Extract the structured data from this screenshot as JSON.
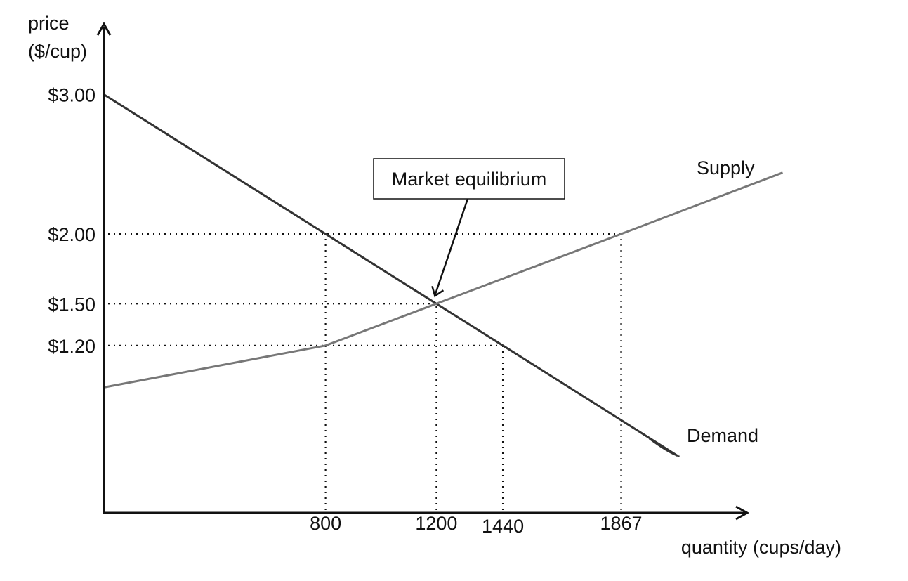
{
  "chart_data": {
    "type": "line",
    "title": "",
    "xlabel": "quantity (cups/day)",
    "ylabel": "price ($/cup)",
    "ylabel_lines": [
      "price",
      "($/cup)"
    ],
    "x_ticks": [
      800,
      1200,
      1440,
      1867
    ],
    "x_tick_labels": [
      "800",
      "1200",
      "1440",
      "1867"
    ],
    "y_ticks": [
      3.0,
      2.0,
      1.5,
      1.2
    ],
    "y_tick_labels": [
      "$3.00",
      "$2.00",
      "$1.50",
      "$1.20"
    ],
    "series": [
      {
        "name": "Demand",
        "label": "Demand",
        "color": "#333333",
        "points": [
          [
            0,
            3.0
          ],
          [
            800,
            2.0
          ],
          [
            1200,
            1.5
          ],
          [
            1440,
            1.2
          ],
          [
            2070,
            0.41
          ]
        ]
      },
      {
        "name": "Supply",
        "label": "Supply",
        "color": "#777777",
        "points": [
          [
            0,
            0.9
          ],
          [
            800,
            1.2
          ],
          [
            1200,
            1.5
          ],
          [
            1867,
            2.0
          ],
          [
            2450,
            2.44
          ]
        ]
      }
    ],
    "guides": [
      {
        "kind": "h",
        "y": 2.0,
        "x_to": 1867
      },
      {
        "kind": "h",
        "y": 1.5,
        "x_to": 1200
      },
      {
        "kind": "h",
        "y": 1.2,
        "x_to": 1440
      },
      {
        "kind": "v",
        "x": 800,
        "y_to": 2.0
      },
      {
        "kind": "v",
        "x": 1200,
        "y_to": 1.5
      },
      {
        "kind": "v",
        "x": 1440,
        "y_to": 1.2
      },
      {
        "kind": "v",
        "x": 1867,
        "y_to": 2.0
      }
    ],
    "annotation": {
      "text": "Market equilibrium",
      "points_to": [
        1200,
        1.5
      ]
    }
  }
}
